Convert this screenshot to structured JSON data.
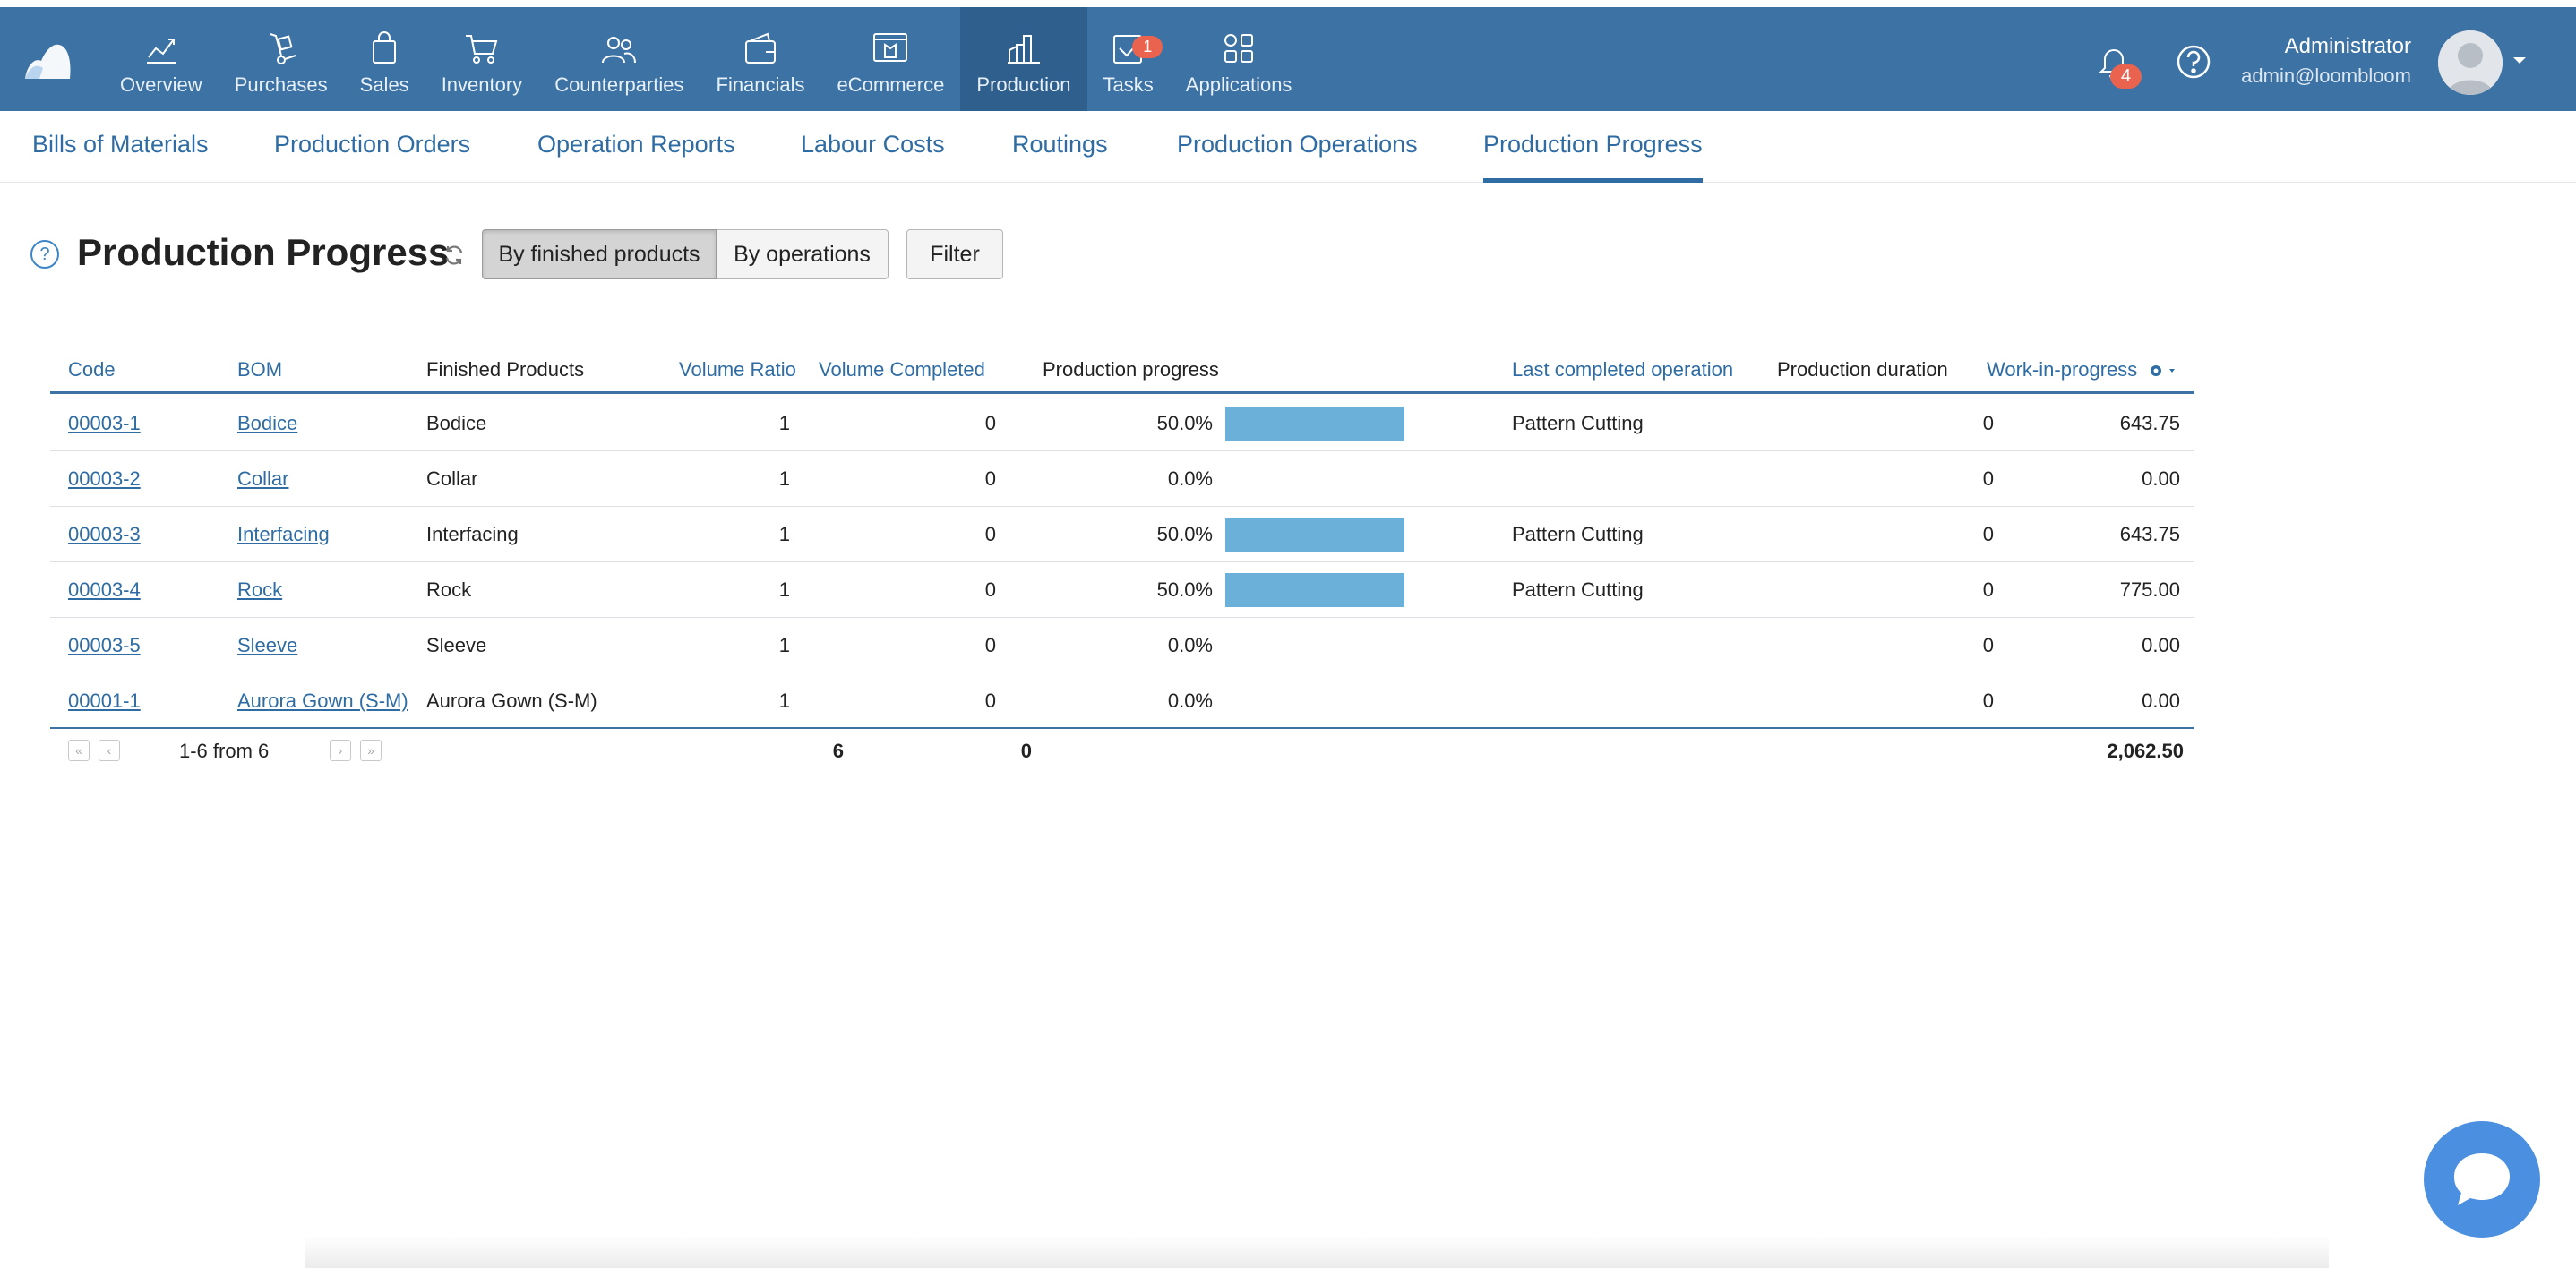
{
  "nav": {
    "items": [
      {
        "label": "Overview",
        "icon": "chart-line-icon"
      },
      {
        "label": "Purchases",
        "icon": "hand-truck-icon"
      },
      {
        "label": "Sales",
        "icon": "shopping-bag-icon"
      },
      {
        "label": "Inventory",
        "icon": "cart-icon"
      },
      {
        "label": "Counterparties",
        "icon": "people-icon"
      },
      {
        "label": "Financials",
        "icon": "wallet-icon"
      },
      {
        "label": "eCommerce",
        "icon": "store-icon"
      },
      {
        "label": "Production",
        "icon": "factory-icon"
      },
      {
        "label": "Tasks",
        "icon": "task-check-icon"
      },
      {
        "label": "Applications",
        "icon": "apps-grid-icon"
      }
    ],
    "tasks_badge": "1"
  },
  "user": {
    "notifications_badge": "4",
    "name": "Administrator",
    "email": "admin@loombloom"
  },
  "subnav": {
    "items": [
      "Bills of Materials",
      "Production Orders",
      "Operation Reports",
      "Labour Costs",
      "Routings",
      "Production Operations",
      "Production Progress"
    ]
  },
  "page": {
    "title": "Production Progress",
    "help": "?",
    "btn_by_finished": "By finished products",
    "btn_by_operations": "By operations",
    "btn_filter": "Filter"
  },
  "table": {
    "headers": {
      "code": "Code",
      "bom": "BOM",
      "finished": "Finished Products",
      "volume_ratio": "Volume Ratio",
      "volume_completed": "Volume Completed",
      "progress": "Production progress",
      "last_op": "Last completed operation",
      "duration": "Production duration",
      "wip": "Work-in-progress"
    },
    "rows": [
      {
        "code": "00003-1",
        "bom": "Bodice",
        "finished": "Bodice",
        "volume_ratio": "1",
        "volume_completed": "0",
        "progress": "50.0%",
        "progress_value": 0.5,
        "last_op": "Pattern Cutting",
        "duration": "0",
        "wip": "643.75"
      },
      {
        "code": "00003-2",
        "bom": "Collar",
        "finished": "Collar",
        "volume_ratio": "1",
        "volume_completed": "0",
        "progress": "0.0%",
        "progress_value": 0,
        "last_op": "",
        "duration": "0",
        "wip": "0.00"
      },
      {
        "code": "00003-3",
        "bom": "Interfacing",
        "finished": "Interfacing",
        "volume_ratio": "1",
        "volume_completed": "0",
        "progress": "50.0%",
        "progress_value": 0.5,
        "last_op": "Pattern Cutting",
        "duration": "0",
        "wip": "643.75"
      },
      {
        "code": "00003-4",
        "bom": "Rock",
        "finished": "Rock",
        "volume_ratio": "1",
        "volume_completed": "0",
        "progress": "50.0%",
        "progress_value": 0.5,
        "last_op": "Pattern Cutting",
        "duration": "0",
        "wip": "775.00"
      },
      {
        "code": "00003-5",
        "bom": "Sleeve",
        "finished": "Sleeve",
        "volume_ratio": "1",
        "volume_completed": "0",
        "progress": "0.0%",
        "progress_value": 0,
        "last_op": "",
        "duration": "0",
        "wip": "0.00"
      },
      {
        "code": "00001-1",
        "bom": "Aurora Gown (S-M)",
        "finished": "Aurora Gown (S-M)",
        "volume_ratio": "1",
        "volume_completed": "0",
        "progress": "0.0%",
        "progress_value": 0,
        "last_op": "",
        "duration": "0",
        "wip": "0.00"
      }
    ],
    "footer": {
      "pager_text": "1-6 from 6",
      "total_volume_ratio": "6",
      "total_volume_completed": "0",
      "total_wip": "2,062.50"
    }
  }
}
